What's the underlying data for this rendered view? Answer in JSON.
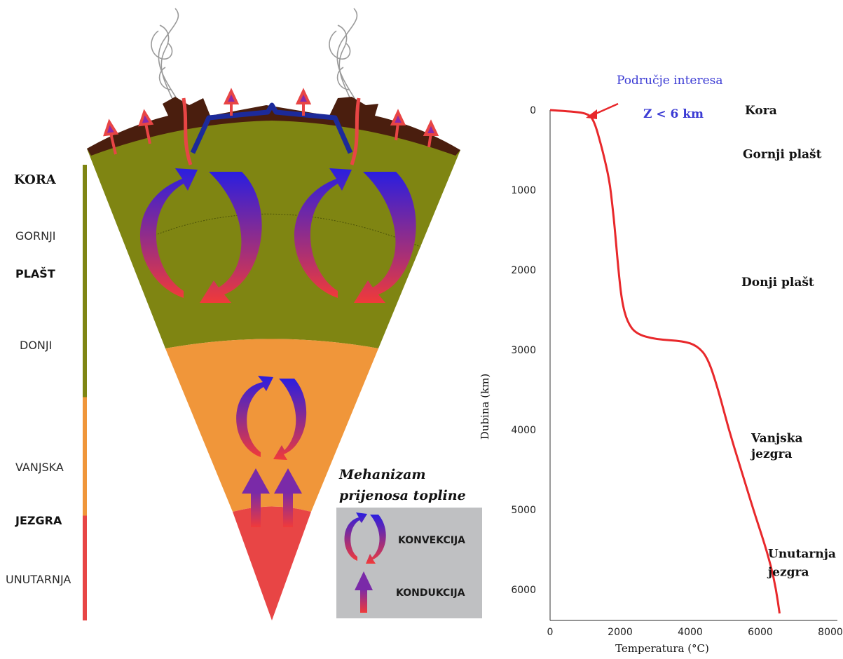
{
  "left_diagram": {
    "side_labels": {
      "kora": "KORA",
      "gornji": "GORNJI",
      "plast": "PLAŠT",
      "donji": "DONJI",
      "vanjska": "VANJSKA",
      "jezgra": "JEZGRA",
      "unutarnja": "UNUTARNJA"
    },
    "legend": {
      "title_line1": "Mehanizam",
      "title_line2": "prijenosa topline",
      "convection": "KONVEKCIJA",
      "conduction": "KONDUKCIJA"
    },
    "colors": {
      "mantle": "#7f8512",
      "outer_core": "#f0963a",
      "inner_core": "#e84545",
      "crust": "#4a1e0e",
      "ocean_crust": "#1c2a9a",
      "legend_bg": "#bfc0c2"
    }
  },
  "chart_data": {
    "type": "line",
    "xlabel": "Temperatura (°C)",
    "ylabel": "Dubina (km)",
    "xlim": [
      0,
      8000
    ],
    "ylim": [
      6300,
      0
    ],
    "x_ticks": [
      "0",
      "2000",
      "4000",
      "6000",
      "8000"
    ],
    "y_ticks": [
      "0",
      "1000",
      "2000",
      "3000",
      "4000",
      "5000",
      "6000"
    ],
    "series": [
      {
        "color": "#e8282b",
        "points": [
          [
            0,
            0
          ],
          [
            500,
            15
          ],
          [
            900,
            30
          ],
          [
            1100,
            60
          ],
          [
            1200,
            100
          ],
          [
            1300,
            200
          ],
          [
            1400,
            350
          ],
          [
            1550,
            600
          ],
          [
            1700,
            900
          ],
          [
            1780,
            1200
          ],
          [
            1850,
            1500
          ],
          [
            1950,
            2000
          ],
          [
            2050,
            2400
          ],
          [
            2200,
            2650
          ],
          [
            2450,
            2800
          ],
          [
            3000,
            2870
          ],
          [
            3800,
            2890
          ],
          [
            4200,
            2950
          ],
          [
            4500,
            3100
          ],
          [
            4800,
            3500
          ],
          [
            5100,
            4000
          ],
          [
            5450,
            4500
          ],
          [
            5800,
            5000
          ],
          [
            6100,
            5400
          ],
          [
            6300,
            5700
          ],
          [
            6450,
            6000
          ],
          [
            6550,
            6300
          ]
        ]
      }
    ],
    "layer_labels": [
      {
        "text": "Kora",
        "depth": 0
      },
      {
        "text": "Gornji plašt",
        "depth": 550
      },
      {
        "text": "Donji plašt",
        "depth": 2150
      },
      {
        "text": "Vanjska",
        "depth": 4100
      },
      {
        "text": "jezgra",
        "depth": 4300
      },
      {
        "text": "Unutarnja",
        "depth": 5550
      },
      {
        "text": "jezgra",
        "depth": 5780
      }
    ],
    "annotation": {
      "title": "Područje interesa",
      "condition": "Z < 6 km"
    }
  }
}
